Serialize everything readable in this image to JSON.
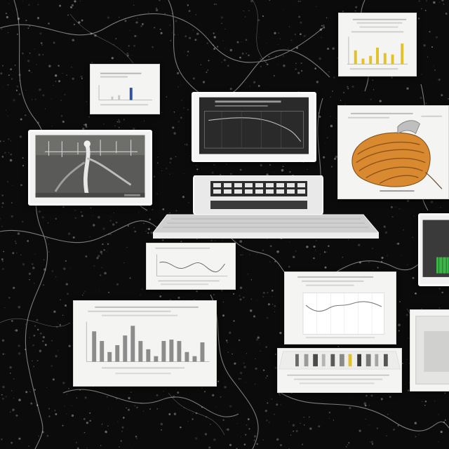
{
  "scene": {
    "background": "dark-neural-network-texture",
    "accent_colors": {
      "background": "#0b0b0b",
      "filament": "#d9d9d9",
      "card": "#f4f4f2",
      "screen": "#2a2a2a",
      "bar_gray": "#8c8c8c",
      "bar_yellow": "#e2c12a",
      "bar_blue": "#2f4fa8",
      "bar_green": "#3fb24a",
      "organ_orange": "#d9892f"
    }
  },
  "items": {
    "retro_computer": {
      "icon": "retro-computer-icon"
    },
    "top_right_card": {
      "icon": "yellow-bar-chart-icon"
    },
    "top_mid_card": {
      "icon": "small-bar-chart-icon"
    },
    "left_screen": {
      "icon": "grayscale-photo-icon"
    },
    "anatomy_card": {
      "icon": "anatomy-illustration-icon"
    },
    "mid_line_card": {
      "icon": "line-chart-icon"
    },
    "large_bar_card": {
      "icon": "bar-chart-icon"
    },
    "right_line_card": {
      "icon": "line-chart-icon"
    },
    "strip_card": {
      "icon": "sample-strip-icon"
    },
    "edge_screen": {
      "icon": "green-readout-icon"
    },
    "edge_card": {
      "icon": "partial-card-icon"
    }
  }
}
